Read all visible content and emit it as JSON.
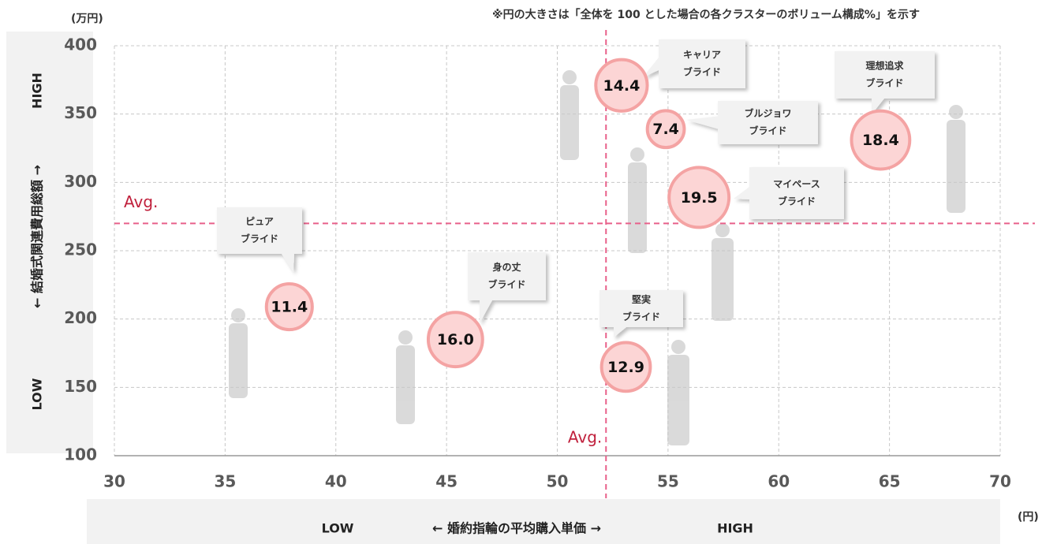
{
  "chart_data": {
    "type": "bubble",
    "note": "※円の大きさは「全体を 100 とした場合の各クラスターのボリューム構成%」を示す",
    "y_unit": "(万円)",
    "x_unit": "(円)",
    "y_label": [
      "LOW",
      "← 結婚式関連費用総額 →",
      "HIGH"
    ],
    "x_label": [
      "LOW",
      "← 婚約指輪の平均購入単価 →",
      "HIGH"
    ],
    "xlim": [
      30,
      70
    ],
    "xticks": [
      30,
      35,
      40,
      45,
      50,
      55,
      60,
      65,
      70
    ],
    "ylim": [
      100,
      400
    ],
    "yticks": [
      100,
      150,
      200,
      250,
      300,
      350,
      400
    ],
    "grid": true,
    "avg": {
      "x": 52.2,
      "y": 270,
      "x_label": "Avg.",
      "y_label": "Avg.",
      "color": "#e8608a"
    },
    "color": "#fcd5d5",
    "edge_color": "#f4a3a3",
    "x": [
      52.9,
      54.9,
      64.6,
      56.4,
      37.9,
      45.4,
      53.1
    ],
    "values": [
      371,
      339,
      331,
      289,
      209,
      185,
      165
    ],
    "sizes": [
      14.4,
      7.4,
      18.4,
      19.5,
      11.4,
      16.0,
      12.9
    ],
    "value_labels": [
      "14.4",
      "7.4",
      "18.4",
      "19.5",
      "11.4",
      "16.0",
      "12.9"
    ],
    "callouts": [
      [
        "キャリア",
        "ブライド"
      ],
      [
        "ブルジョワ",
        "ブライド"
      ],
      [
        "理想追求",
        "ブライド"
      ],
      [
        "マイペース",
        "ブライド"
      ],
      [
        "ピュア",
        "ブライド"
      ],
      [
        "身の丈",
        "ブライド"
      ],
      [
        "堅実",
        "ブライド"
      ]
    ]
  }
}
